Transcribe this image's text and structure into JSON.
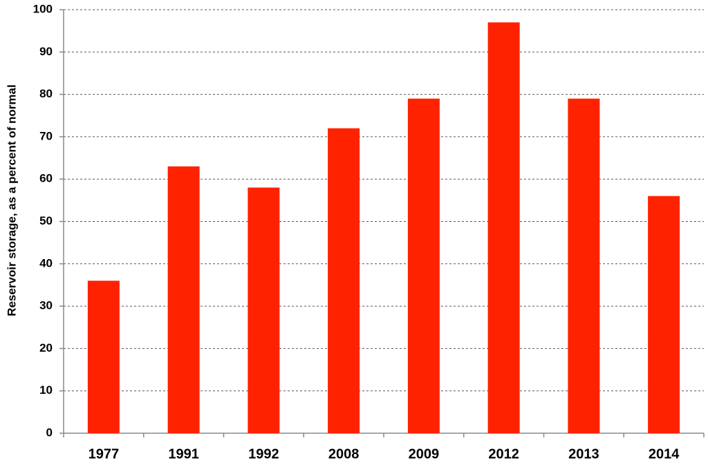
{
  "chart_data": {
    "type": "bar",
    "y_label": "Reservoir storage, as a percent of normal",
    "categories": [
      "1977",
      "1991",
      "1992",
      "2008",
      "2009",
      "2012",
      "2013",
      "2014"
    ],
    "values": [
      36,
      63,
      58,
      72,
      79,
      97,
      79,
      56
    ],
    "color": "#ff2200",
    "ylim": [
      0,
      100
    ],
    "yticks": [
      0,
      10,
      20,
      30,
      40,
      50,
      60,
      70,
      80,
      90,
      100
    ],
    "grid": true
  }
}
